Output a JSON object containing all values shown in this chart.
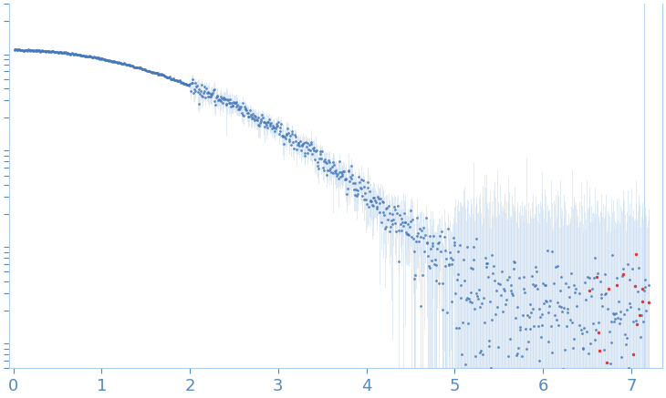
{
  "background_color": "#ffffff",
  "axis_color": "#aaccee",
  "dot_color_blue": "#4477bb",
  "dot_color_red": "#dd2222",
  "error_color": "#c8dcf0",
  "xmin": -0.05,
  "xmax": 7.35,
  "x_ticks": [
    0,
    1,
    2,
    3,
    4,
    5,
    6,
    7
  ],
  "tick_color": "#5588bb",
  "tick_fontsize": 13
}
